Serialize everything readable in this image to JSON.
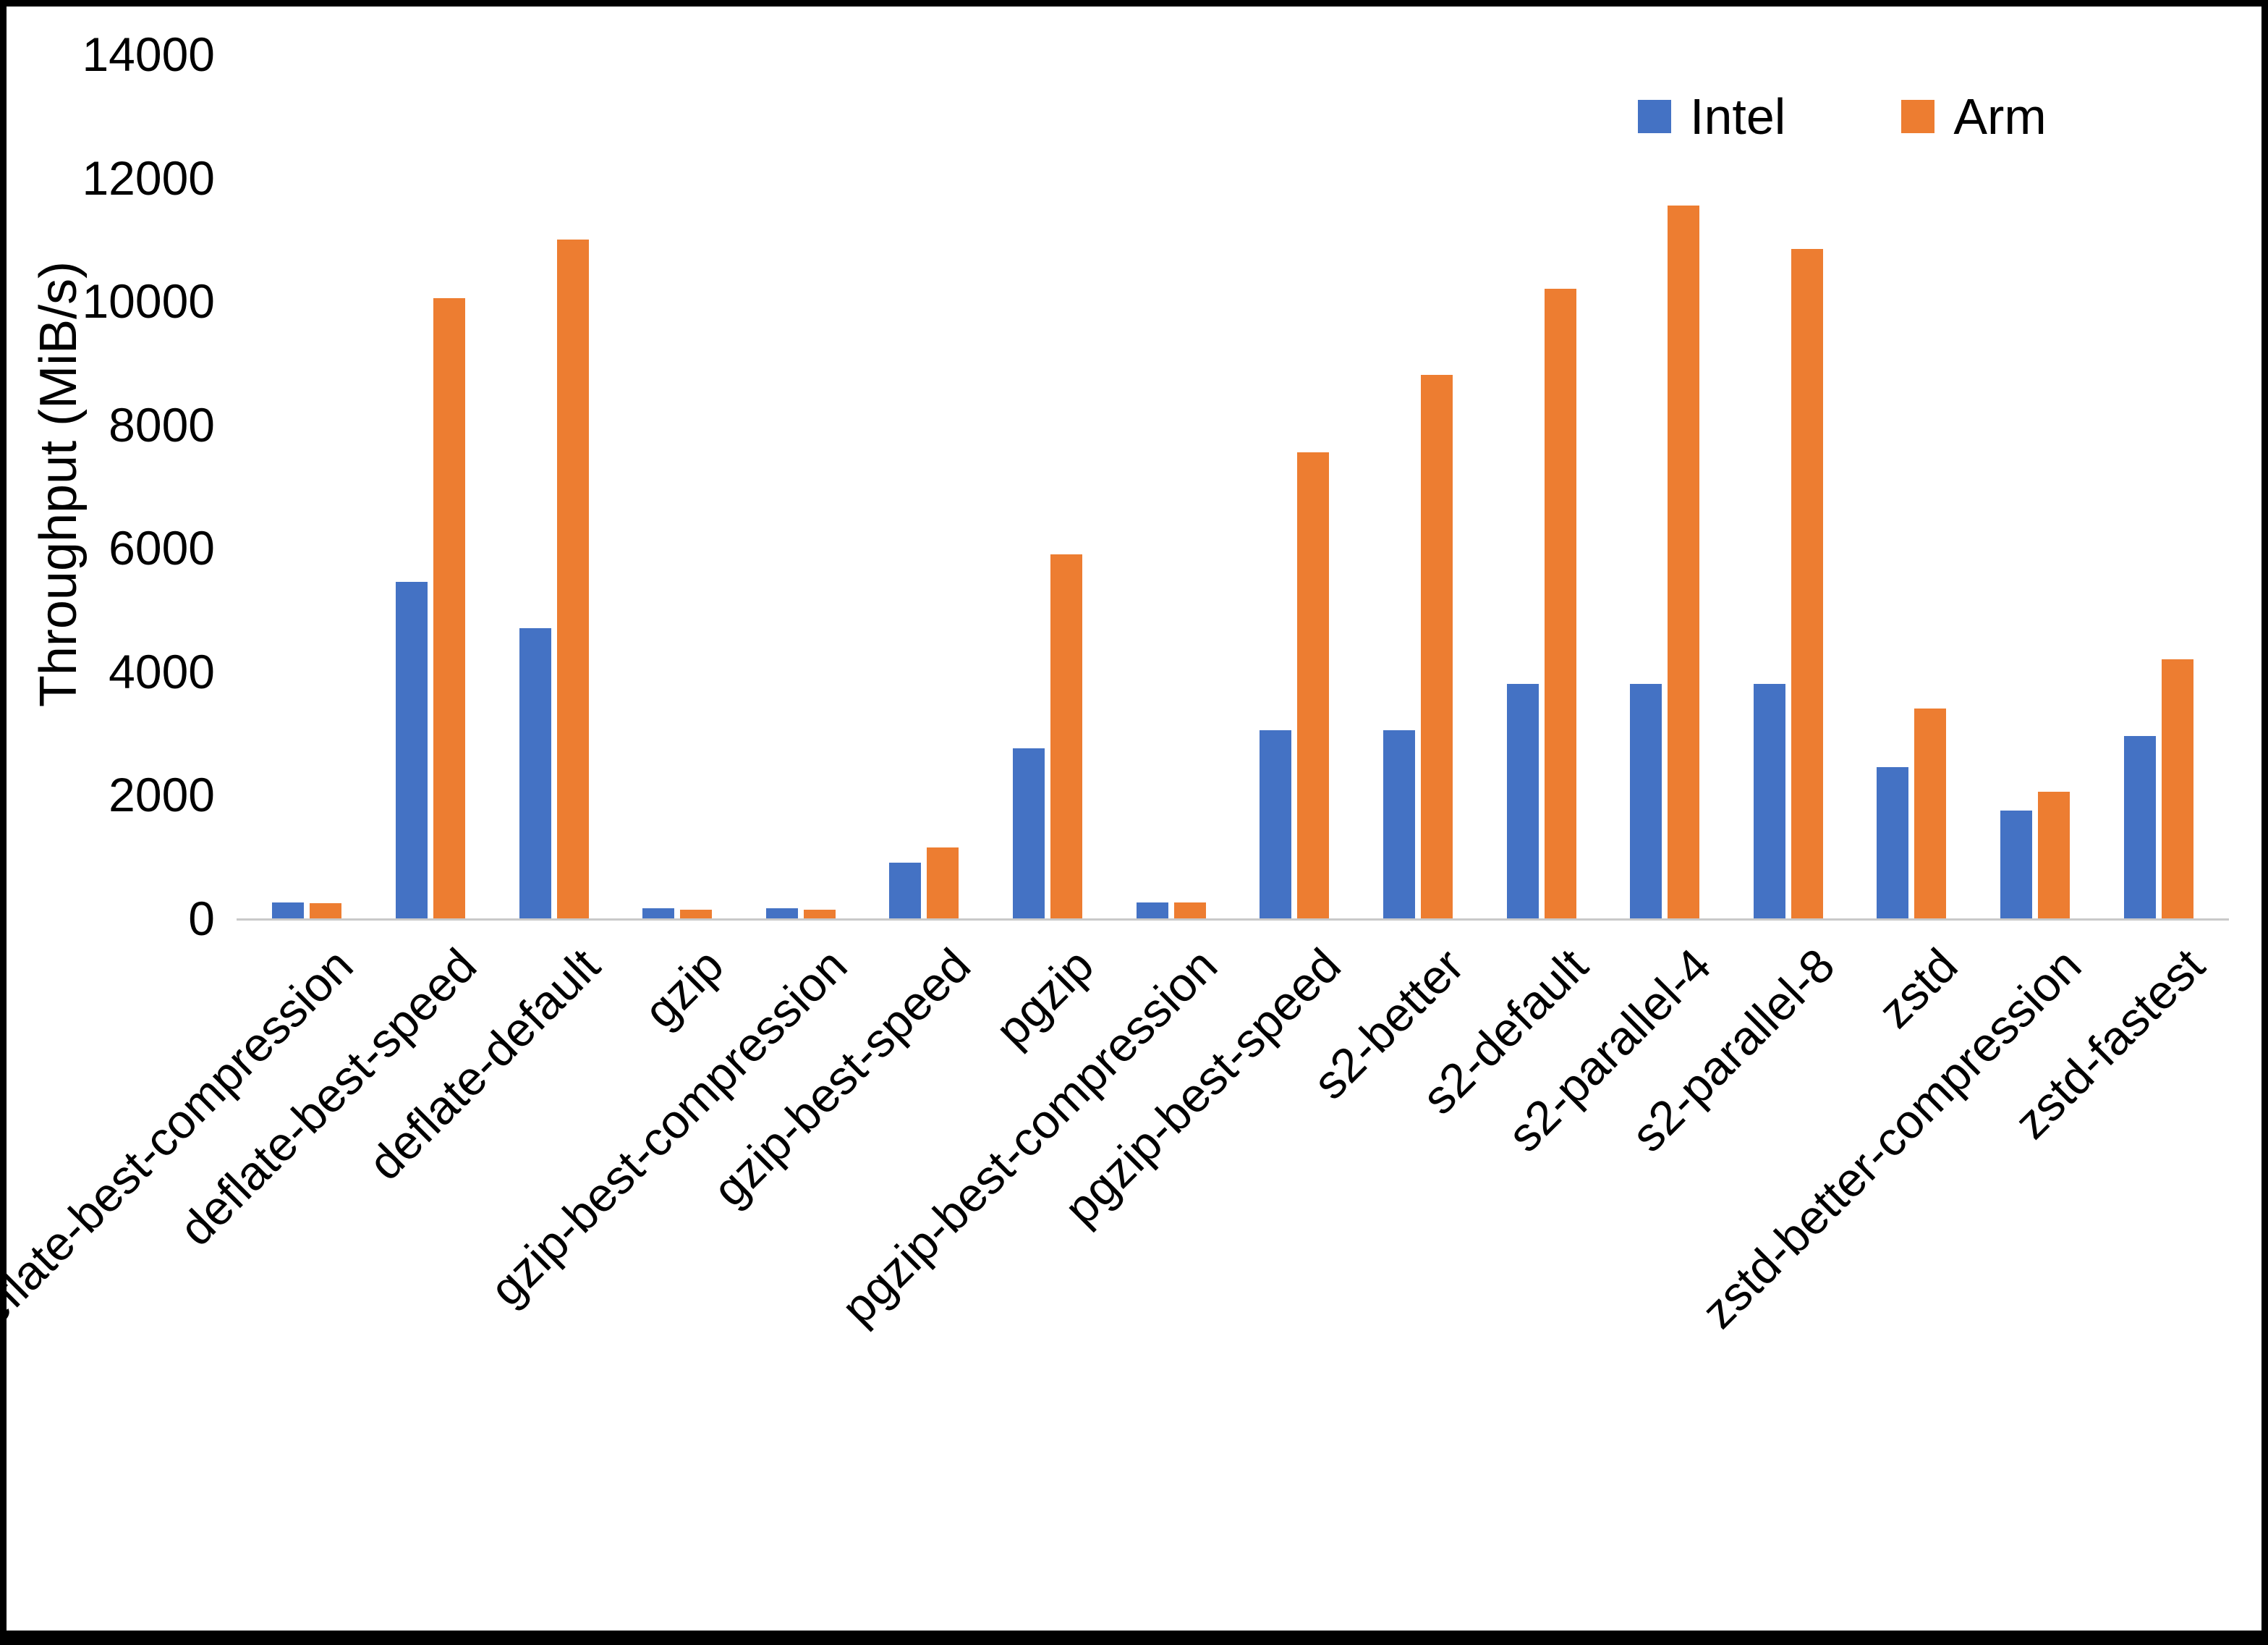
{
  "chart_data": {
    "type": "bar",
    "title": "",
    "xlabel": "",
    "ylabel": "Throughput (MiB/s)",
    "ylim": [
      0,
      14000
    ],
    "ytick_step": 2000,
    "grid": false,
    "legend_position": "top-right",
    "categories": [
      "deflate-best-compression",
      "deflate-best-speed",
      "deflate-default",
      "gzip",
      "gzip-best-compression",
      "gzip-best-speed",
      "pgzip",
      "pgzip-best-compression",
      "pgzip-best-speed",
      "s2-better",
      "s2-default",
      "s2-parallel-4",
      "s2-parallel-8",
      "zstd",
      "zstd-better-compression",
      "zstd-fastest"
    ],
    "series": [
      {
        "name": "Intel",
        "color": "#4472C4",
        "values": [
          260,
          5450,
          4700,
          160,
          160,
          900,
          2750,
          260,
          3050,
          3050,
          3800,
          3800,
          3800,
          2450,
          1750,
          2950
        ]
      },
      {
        "name": "Arm",
        "color": "#ED7D31",
        "values": [
          250,
          10050,
          11000,
          140,
          140,
          1150,
          5900,
          260,
          7550,
          8800,
          10200,
          11550,
          10850,
          3400,
          2050,
          4200
        ]
      }
    ]
  }
}
